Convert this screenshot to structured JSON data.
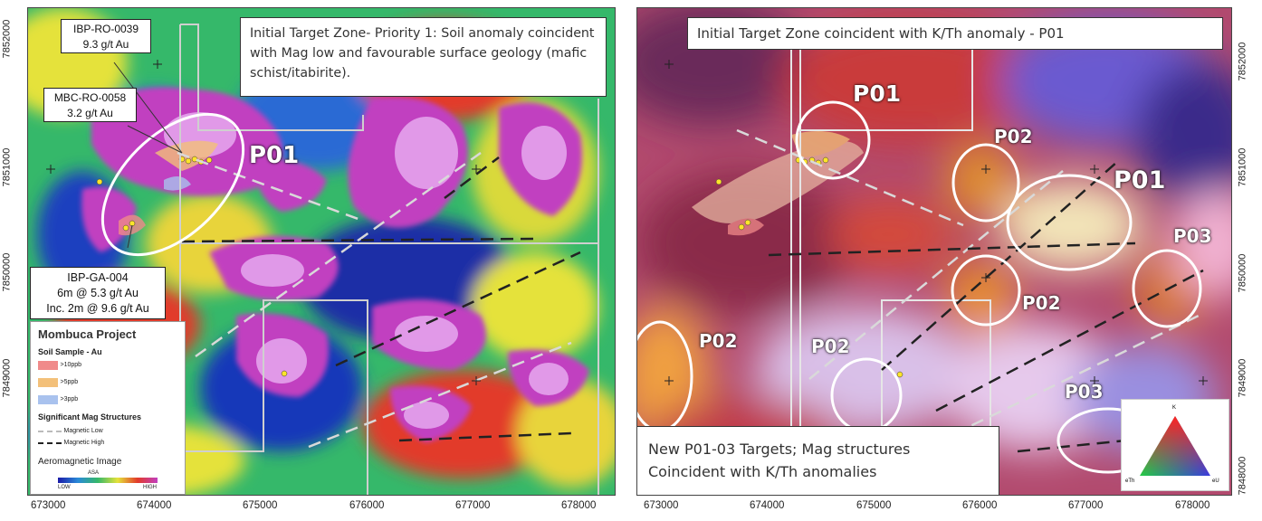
{
  "left": {
    "title": "Initial Target Zone- Priority 1: Soil anomaly coincident with Mag low and favourable surface geology (mafic schist/itabirite).",
    "target": "P01",
    "samples": [
      {
        "lines": [
          "IBP-RO-0039",
          "9.3 g/t Au"
        ]
      },
      {
        "lines": [
          "MBC-RO-0058",
          "3.2 g/t Au"
        ]
      },
      {
        "lines": [
          "IBP-GA-004",
          "6m @ 5.3 g/t Au",
          "Inc. 2m @ 9.6 g/t Au"
        ]
      }
    ],
    "legend": {
      "title": "Mombuca Project",
      "soil_heading": "Soil Sample - Au",
      "soil_items": [
        {
          "label": ">10ppb",
          "color": "#f08a8a"
        },
        {
          "label": ">5ppb",
          "color": "#f3c07a"
        },
        {
          "label": ">3ppb",
          "color": "#a9c2ee"
        }
      ],
      "mag_heading": "Significant Mag Structures",
      "mag_items": [
        {
          "label": "Magnetic Low",
          "style": "dashed-light"
        },
        {
          "label": "Magnetic High",
          "style": "dashed-dark"
        }
      ],
      "aero_heading": "Aeromagnetic Image",
      "scale_unit": "ASA",
      "scale_low": "LOW",
      "scale_high": "HIGH"
    },
    "y_ticks": [
      "7852000",
      "7851000",
      "7850000",
      "7849000"
    ],
    "x_ticks": [
      "673000",
      "674000",
      "675000",
      "676000",
      "677000",
      "678000"
    ]
  },
  "right": {
    "title": "Initial Target Zone  coincident with K/Th anomaly  - P01",
    "bottom_text": [
      "New P01-03 Targets; Mag structures",
      "Coincident with K/Th anomalies"
    ],
    "targets": [
      "P01",
      "P02",
      "P01",
      "P03",
      "P02",
      "P02",
      "P02",
      "P03"
    ],
    "ternary": {
      "top": "K",
      "left": "eTh",
      "right": "eU"
    },
    "y_ticks": [
      "7852000",
      "7851000",
      "7850000",
      "7849000",
      "7848000"
    ],
    "x_ticks": [
      "673000",
      "674000",
      "675000",
      "676000",
      "677000",
      "678000"
    ]
  }
}
